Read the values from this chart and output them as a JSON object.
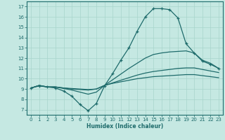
{
  "title": "",
  "xlabel": "Humidex (Indice chaleur)",
  "ylabel": "",
  "xlim": [
    -0.5,
    23.5
  ],
  "ylim": [
    6.5,
    17.5
  ],
  "xticks": [
    0,
    1,
    2,
    3,
    4,
    5,
    6,
    7,
    8,
    9,
    10,
    11,
    12,
    13,
    14,
    15,
    16,
    17,
    18,
    19,
    20,
    21,
    22,
    23
  ],
  "yticks": [
    7,
    8,
    9,
    10,
    11,
    12,
    13,
    14,
    15,
    16,
    17
  ],
  "bg_color": "#c5e8e2",
  "line_color": "#1e6b6b",
  "grid_color": "#a8d4cc",
  "lines": [
    {
      "x": [
        0,
        1,
        2,
        3,
        4,
        5,
        6,
        7,
        8,
        9,
        10,
        11,
        12,
        13,
        14,
        15,
        16,
        17,
        18,
        19,
        20,
        21,
        22,
        23
      ],
      "y": [
        9.1,
        9.3,
        9.2,
        9.1,
        8.8,
        8.3,
        7.5,
        6.9,
        7.6,
        9.3,
        10.5,
        11.8,
        13.0,
        14.6,
        16.0,
        16.8,
        16.8,
        16.7,
        15.9,
        13.4,
        12.5,
        11.7,
        11.4,
        11.0
      ],
      "marker": "+"
    },
    {
      "x": [
        0,
        1,
        2,
        3,
        4,
        5,
        6,
        7,
        8,
        9,
        10,
        11,
        12,
        13,
        14,
        15,
        16,
        17,
        18,
        19,
        20,
        21,
        22,
        23
      ],
      "y": [
        9.1,
        9.35,
        9.2,
        9.2,
        9.05,
        8.9,
        8.7,
        8.5,
        8.7,
        9.35,
        9.9,
        10.45,
        11.0,
        11.5,
        12.0,
        12.35,
        12.5,
        12.6,
        12.65,
        12.7,
        12.5,
        11.8,
        11.5,
        11.0
      ],
      "marker": null
    },
    {
      "x": [
        0,
        1,
        2,
        3,
        4,
        5,
        6,
        7,
        8,
        9,
        10,
        11,
        12,
        13,
        14,
        15,
        16,
        17,
        18,
        19,
        20,
        21,
        22,
        23
      ],
      "y": [
        9.1,
        9.35,
        9.2,
        9.2,
        9.1,
        9.0,
        8.95,
        8.9,
        9.0,
        9.35,
        9.6,
        9.85,
        10.1,
        10.35,
        10.55,
        10.7,
        10.8,
        10.9,
        11.0,
        11.05,
        11.05,
        10.9,
        10.75,
        10.6
      ],
      "marker": null
    },
    {
      "x": [
        0,
        1,
        2,
        3,
        4,
        5,
        6,
        7,
        8,
        9,
        10,
        11,
        12,
        13,
        14,
        15,
        16,
        17,
        18,
        19,
        20,
        21,
        22,
        23
      ],
      "y": [
        9.1,
        9.35,
        9.2,
        9.2,
        9.1,
        9.05,
        9.0,
        8.95,
        9.0,
        9.35,
        9.55,
        9.7,
        9.85,
        10.0,
        10.1,
        10.2,
        10.25,
        10.3,
        10.35,
        10.4,
        10.4,
        10.3,
        10.2,
        10.1
      ],
      "marker": null
    }
  ]
}
